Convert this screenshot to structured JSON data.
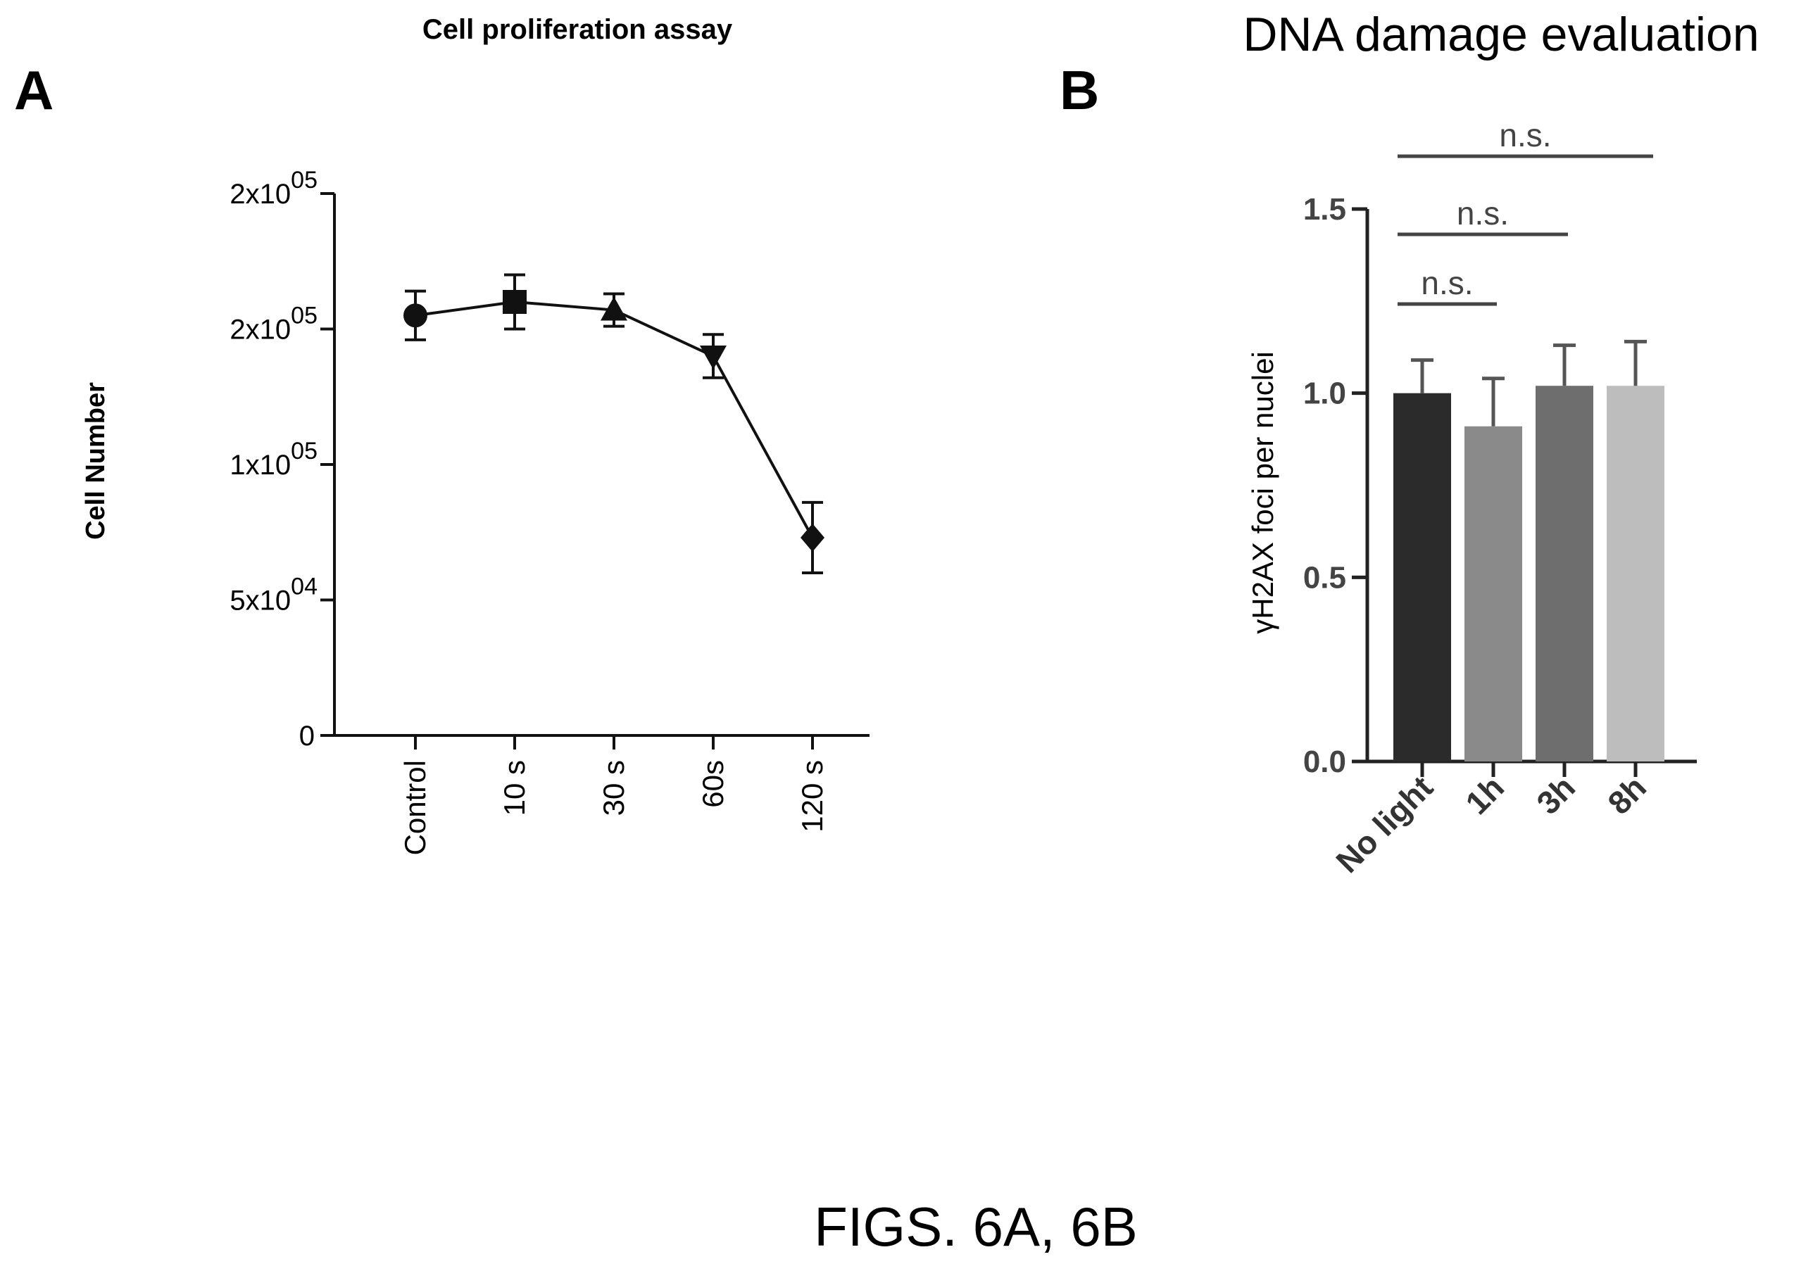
{
  "figure_caption": "FIGS. 6A, 6B",
  "chart_data": [
    {
      "panel_label": "A",
      "type": "line",
      "title": "Cell proliferation assay",
      "xlabel": "",
      "ylabel": "Cell Number",
      "categories": [
        "Control",
        "10 s",
        "30 s",
        "60s",
        "120 s"
      ],
      "series": [
        {
          "markers": [
            "circle",
            "square",
            "triangle-up",
            "triangle-down",
            "diamond"
          ],
          "values": [
            155000,
            160000,
            157000,
            140000,
            73000
          ],
          "error": [
            9000,
            10000,
            6000,
            8000,
            13000
          ]
        }
      ],
      "yticks": [
        {
          "value": 0,
          "label": "0"
        },
        {
          "value": 50000,
          "label": "5x10",
          "exp": "04"
        },
        {
          "value": 100000,
          "label": "1x10",
          "exp": "05"
        },
        {
          "value": 150000,
          "label": "2x10",
          "exp": "05"
        },
        {
          "value": 200000,
          "label": "2x10",
          "exp": "05"
        }
      ],
      "ylim": [
        0,
        200000
      ],
      "legend": "none",
      "grid": false
    },
    {
      "panel_label": "B",
      "type": "bar",
      "title": "DNA damage evaluation",
      "xlabel": "",
      "ylabel": "γH2AX foci per nuclei",
      "categories": [
        "No light",
        "1h",
        "3h",
        "8h"
      ],
      "values": [
        1.0,
        0.91,
        1.02,
        1.02
      ],
      "error": [
        0.09,
        0.13,
        0.11,
        0.12
      ],
      "bar_colors": [
        "#2b2b2b",
        "#8a8a8a",
        "#6e6e6e",
        "#bdbdbd"
      ],
      "yticks": [
        "0.0",
        "0.5",
        "1.0",
        "1.5"
      ],
      "ylim": [
        0,
        1.5
      ],
      "grid": false,
      "legend": "none",
      "significance": [
        {
          "from": "No light",
          "to": "1h",
          "label": "n.s."
        },
        {
          "from": "No light",
          "to": "3h",
          "label": "n.s."
        },
        {
          "from": "No light",
          "to": "8h",
          "label": "n.s."
        }
      ]
    }
  ]
}
